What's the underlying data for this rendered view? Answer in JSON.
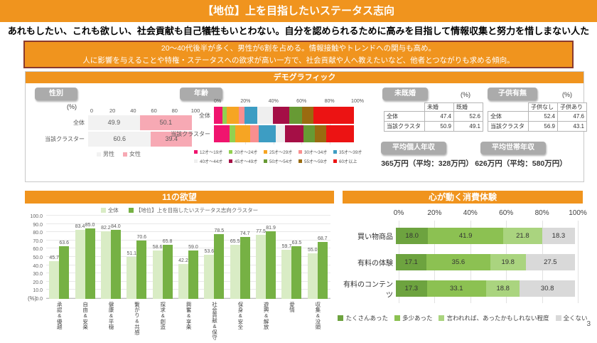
{
  "page": {
    "title": "【地位】上を目指したいステータス志向",
    "subtitle": "あれもしたい、これも欲しい、社会貢献も自己犠牲もいとわない。自分を認められるために高みを目指して情報収集と努力を惜しまない人たち。",
    "summary_line1": "20～40代後半が多く、男性が6割を占める。情報接触やトレンドへの関与も高め。",
    "summary_line2": "人に影響を与えることや特権・ステータスへの欲求が高い一方で、社会貢献や人へ教えたいなど、他者とつながりも求める傾向。",
    "page_number": "3"
  },
  "colors": {
    "accent_orange": "#f0941e",
    "summary_border": "#8a3a2e",
    "badge_gray": "#ababab",
    "panel_border": "#c9c9c9"
  },
  "sections": {
    "demographics": "デモグラフィック",
    "desires": "11の欲望",
    "consumption": "心が動く消費体験"
  },
  "demographics": {
    "gender_label": "性別",
    "gender_unit": "(%)",
    "age_label": "年齢",
    "marital_label": "未既婚",
    "marital_unit": "(%)",
    "children_label": "子供有無",
    "children_unit": "(%)",
    "marital_table": {
      "columns": [
        "未婚",
        "既婚"
      ],
      "rows": [
        {
          "name": "全体",
          "values": [
            47.4,
            52.6
          ]
        },
        {
          "name": "当該クラスター",
          "values": [
            50.9,
            49.1
          ]
        }
      ]
    },
    "children_table": {
      "columns": [
        "子供なし",
        "子供あり"
      ],
      "rows": [
        {
          "name": "全体",
          "values": [
            52.4,
            47.6
          ]
        },
        {
          "name": "当該クラスター",
          "values": [
            56.9,
            43.1
          ]
        }
      ]
    },
    "income_personal_label": "平均個人年収",
    "income_personal_value": "365万円（平均：328万円）",
    "income_household_label": "平均世帯年収",
    "income_household_value": "626万円（平均：580万円）"
  },
  "chart_data": [
    {
      "id": "gender",
      "type": "bar",
      "title": "性別",
      "orientation": "horizontal-stacked",
      "unit": "(%)",
      "categories": [
        "全体",
        "当該クラスター"
      ],
      "ticks": [
        "0",
        "20",
        "40",
        "60",
        "80",
        "100"
      ],
      "xlim": [
        0,
        100
      ],
      "series": [
        {
          "name": "男性",
          "color": "#f2f2f2",
          "values": [
            49.9,
            60.6
          ]
        },
        {
          "name": "女性",
          "color": "#f7a9b4",
          "values": [
            50.1,
            39.4
          ]
        }
      ],
      "legend_position": "bottom"
    },
    {
      "id": "age",
      "type": "bar",
      "title": "年齢",
      "orientation": "horizontal-stacked",
      "categories": [
        "全体",
        "当該クラスター"
      ],
      "ticks": [
        "0%",
        "20%",
        "40%",
        "60%",
        "80%",
        "100%"
      ],
      "xlim": [
        0,
        100
      ],
      "estimated": true,
      "series": [
        {
          "name": "12才～19才",
          "color": "#f0146e",
          "values": [
            6,
            11
          ]
        },
        {
          "name": "20才～24才",
          "color": "#92d050",
          "values": [
            3,
            4
          ]
        },
        {
          "name": "25才～29才",
          "color": "#f6a523",
          "values": [
            9,
            11
          ]
        },
        {
          "name": "30才～34才",
          "color": "#f98f8f",
          "values": [
            4,
            6
          ]
        },
        {
          "name": "35才～39才",
          "color": "#3d9dc3",
          "values": [
            9,
            12
          ]
        },
        {
          "name": "40才～44才",
          "color": "#efefef",
          "values": [
            11,
            7
          ]
        },
        {
          "name": "45才～49才",
          "color": "#a50f46",
          "values": [
            12,
            13
          ]
        },
        {
          "name": "50才～54才",
          "color": "#679a34",
          "values": [
            9,
            8
          ]
        },
        {
          "name": "55才～59才",
          "color": "#9a6b10",
          "values": [
            8,
            8
          ]
        },
        {
          "name": "60才以上",
          "color": "#ec1313",
          "values": [
            29,
            20
          ]
        }
      ],
      "legend_position": "bottom"
    },
    {
      "id": "desires",
      "type": "bar",
      "title": "11の欲望",
      "ylabel": "(%)",
      "ylim": [
        0,
        100
      ],
      "ytick_step": 10,
      "grid": true,
      "legend_position": "top",
      "categories": [
        "承認&優越",
        "自由&安楽",
        "健康&平穏",
        "繋がり&共感",
        "探求&創造",
        "興奮&享楽",
        "社会貢献&保守",
        "保身&安全",
        "遊興&解放",
        "愛情",
        "収集&没頭"
      ],
      "series": [
        {
          "name": "全体",
          "color": "#d9ecc5",
          "values": [
            45.7,
            83.4,
            82.2,
            51.1,
            58.6,
            42.2,
            53.6,
            65.5,
            77.5,
            59.7,
            55.0
          ]
        },
        {
          "name": "【地位】上を目指したいステータス志向クラスター",
          "color": "#76b144",
          "values": [
            63.6,
            85.0,
            84.0,
            70.6,
            65.8,
            59.0,
            78.5,
            74.7,
            81.9,
            63.5,
            68.7
          ]
        }
      ]
    },
    {
      "id": "consumption",
      "type": "bar",
      "title": "心が動く消費体験",
      "orientation": "horizontal-stacked",
      "ticks": [
        "0%",
        "20%",
        "40%",
        "60%",
        "80%",
        "100%"
      ],
      "xlim": [
        0,
        100
      ],
      "grid": true,
      "legend_position": "bottom",
      "categories": [
        "買い物商品",
        "有料の体験",
        "有料のコンテンツ"
      ],
      "series": [
        {
          "name": "たくさんあった",
          "color": "#6da33f",
          "values": [
            18.0,
            17.1,
            17.3
          ]
        },
        {
          "name": "多少あった",
          "color": "#8cc152",
          "values": [
            41.9,
            35.6,
            33.1
          ]
        },
        {
          "name": "言われれば、あったかもしれない程度",
          "color": "#aad47f",
          "values": [
            21.8,
            19.8,
            18.8
          ]
        },
        {
          "name": "全くない",
          "color": "#d9d9d9",
          "values": [
            18.3,
            27.5,
            30.8
          ]
        }
      ]
    }
  ]
}
